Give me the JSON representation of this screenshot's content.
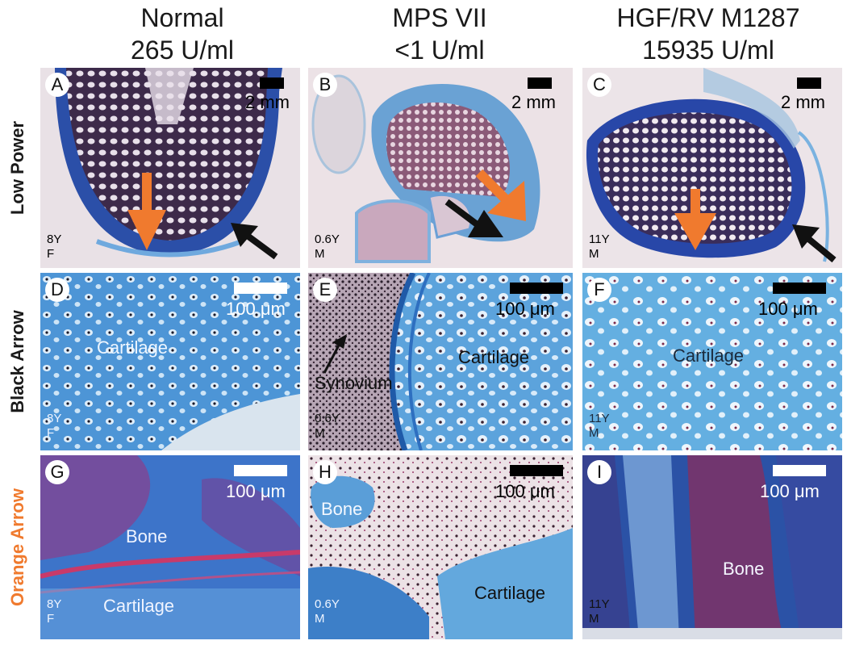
{
  "columns": [
    {
      "line1": "Normal",
      "line2": "265 U/ml"
    },
    {
      "line1": "MPS VII",
      "line2": "<1 U/ml"
    },
    {
      "line1": "HGF/RV M1287",
      "line2": "15935 U/ml"
    }
  ],
  "rows": [
    {
      "label": "Low Power",
      "color": "#1a1a1a"
    },
    {
      "label": "Black Arrow",
      "color": "#1a1a1a"
    },
    {
      "label": "Orange Arrow",
      "color": "#f07a2e"
    }
  ],
  "panels": {
    "A": {
      "letter": "A",
      "scale": "2 mm",
      "age": "8Y",
      "sex": "F"
    },
    "B": {
      "letter": "B",
      "scale": "2 mm",
      "age": "0.6Y",
      "sex": "M"
    },
    "C": {
      "letter": "C",
      "scale": "2 mm",
      "age": "11Y",
      "sex": "M"
    },
    "D": {
      "letter": "D",
      "scale": "100 μm",
      "age": "8Y",
      "sex": "F",
      "label1": "Cartilage"
    },
    "E": {
      "letter": "E",
      "scale": "100 μm",
      "age": "0.6Y",
      "sex": "M",
      "label1": "Cartilage",
      "label2": "Synovium"
    },
    "F": {
      "letter": "F",
      "scale": "100 μm",
      "age": "11Y",
      "sex": "M",
      "label1": "Cartilage"
    },
    "G": {
      "letter": "G",
      "scale": "100 μm",
      "age": "8Y",
      "sex": "F",
      "label1": "Bone",
      "label2": "Cartilage"
    },
    "H": {
      "letter": "H",
      "scale": "100 μm",
      "age": "0.6Y",
      "sex": "M",
      "label1": "Bone",
      "label2": "Cartilage"
    },
    "I": {
      "letter": "I",
      "scale": "100 μm",
      "age": "11Y",
      "sex": "M",
      "label1": "Bone"
    }
  },
  "colors": {
    "arrow_orange": "#f07a2e",
    "arrow_black": "#111111",
    "tissue_blue": "#4a8cd0",
    "bone_purple": "#5a3a66",
    "pale_pink": "#eadde2"
  }
}
